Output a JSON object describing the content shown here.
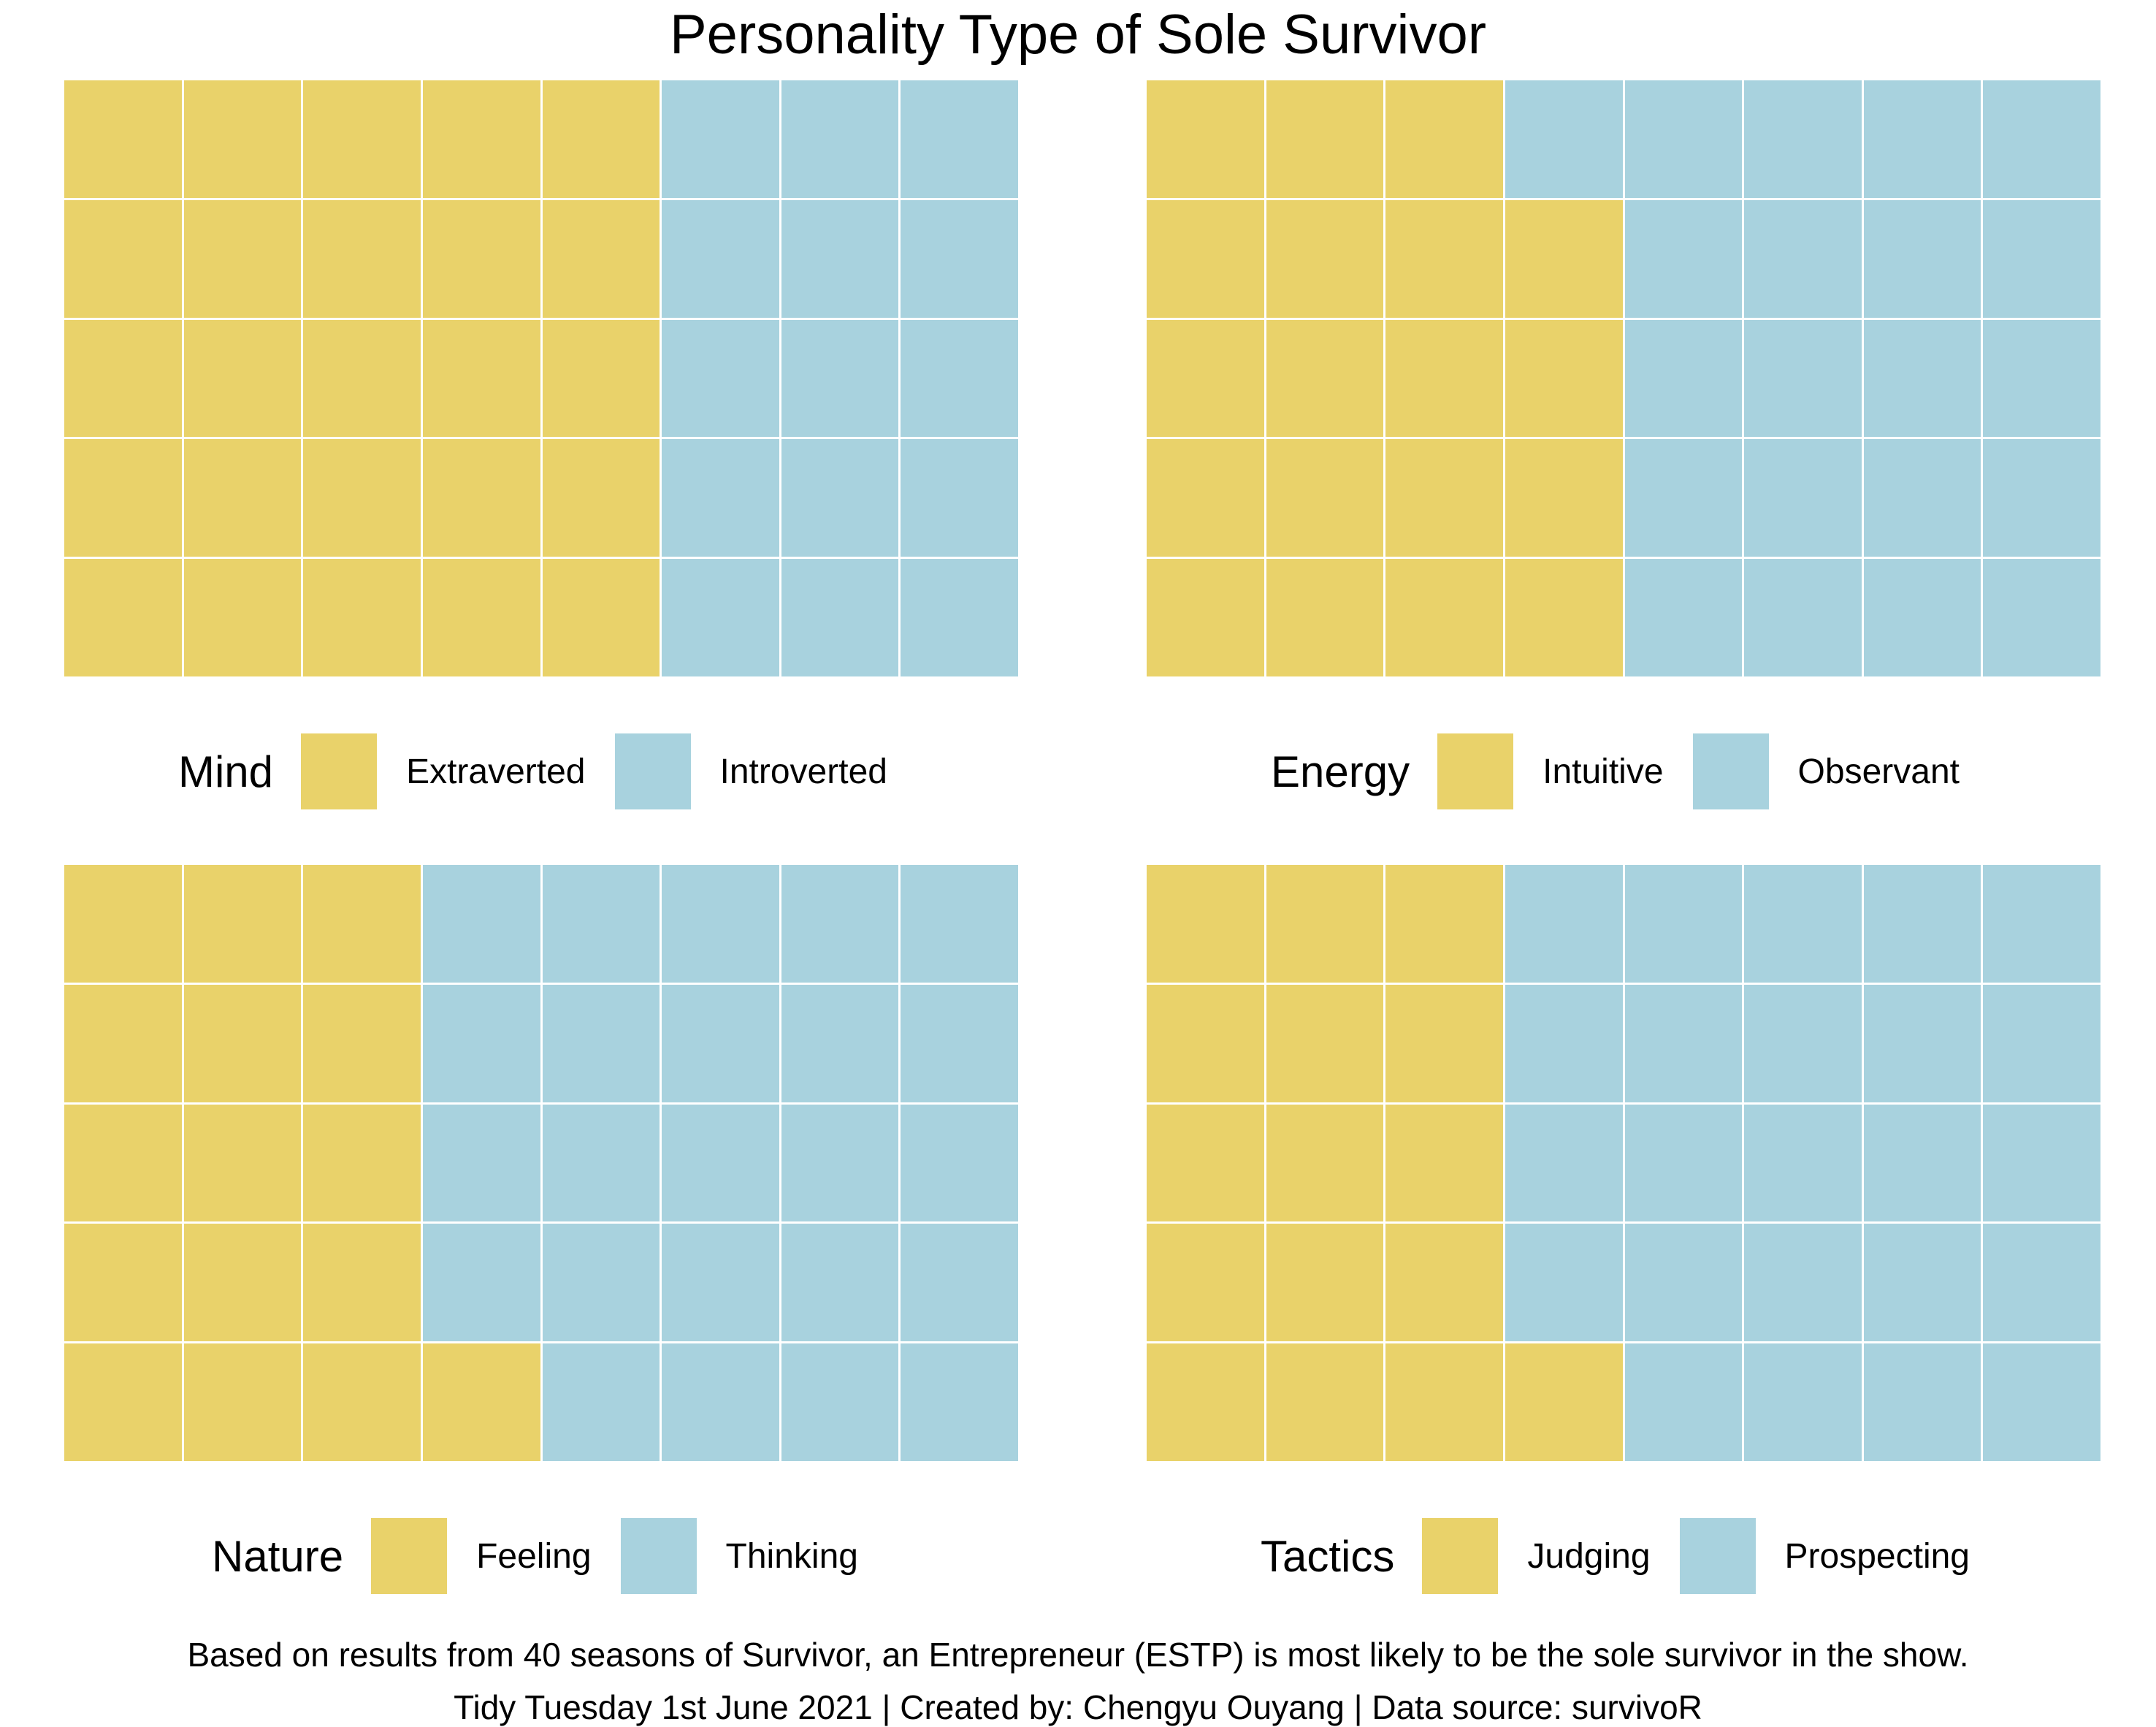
{
  "title": "Personality Type of Sole Survivor",
  "colors": {
    "first": "#e9d26a",
    "second": "#a8d2de",
    "grid_line": "#ffffff"
  },
  "chart_data": [
    {
      "type": "waffle",
      "facet": "Mind",
      "grid": {
        "columns": 8,
        "rows": 5
      },
      "categories": [
        "Extraverted",
        "Introverted"
      ],
      "values": [
        25,
        15
      ],
      "legend_title": "Mind",
      "legend_placement": "bottom"
    },
    {
      "type": "waffle",
      "facet": "Energy",
      "grid": {
        "columns": 8,
        "rows": 5
      },
      "categories": [
        "Intuitive",
        "Observant"
      ],
      "values": [
        19,
        21
      ],
      "legend_title": "Energy",
      "legend_placement": "bottom"
    },
    {
      "type": "waffle",
      "facet": "Nature",
      "grid": {
        "columns": 8,
        "rows": 5
      },
      "categories": [
        "Feeling",
        "Thinking"
      ],
      "values": [
        16,
        24
      ],
      "legend_title": "Nature",
      "legend_placement": "bottom"
    },
    {
      "type": "waffle",
      "facet": "Tactics",
      "grid": {
        "columns": 8,
        "rows": 5
      },
      "categories": [
        "Judging",
        "Prospecting"
      ],
      "values": [
        16,
        24
      ],
      "legend_title": "Tactics",
      "legend_placement": "bottom"
    }
  ],
  "caption": {
    "line1": "Based on results from 40 seasons of Survivor, an Entrepreneur (ESTP) is most likely to be the sole survivor in the show.",
    "line2": "Tidy Tuesday 1st June 2021 | Created by: Chengyu Ouyang | Data source: survivoR"
  }
}
